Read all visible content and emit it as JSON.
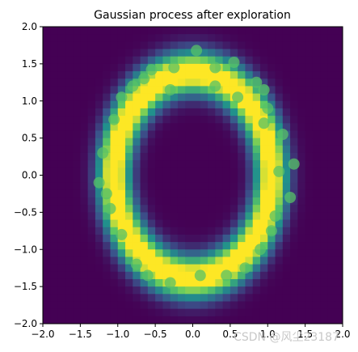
{
  "chart_data": {
    "type": "heatmap",
    "title": "Gaussian process after exploration",
    "xlabel": "",
    "ylabel": "",
    "xlim": [
      -2.0,
      2.0
    ],
    "ylim": [
      -2.0,
      2.0
    ],
    "x_ticks": [
      "−2.0",
      "−1.5",
      "−1.0",
      "−0.5",
      "0.0",
      "0.5",
      "1.0",
      "1.5",
      "2.0"
    ],
    "x_tick_values": [
      -2.0,
      -1.5,
      -1.0,
      -0.5,
      0.0,
      0.5,
      1.0,
      1.5,
      2.0
    ],
    "y_ticks": [
      "2.0",
      "1.5",
      "1.0",
      "0.5",
      "0.0",
      "−0.5",
      "−1.0",
      "−1.5",
      "−2.0"
    ],
    "y_tick_values": [
      2.0,
      1.5,
      1.0,
      0.5,
      0.0,
      -0.5,
      -1.0,
      -1.5,
      -2.0
    ],
    "grid": false,
    "colormap": "viridis",
    "background_color": "#440154",
    "description_of_values": "elliptical ring of high values (yellow) centred near (0.0, 0.0) with horizontal radius about 1.05 and vertical radius about 1.38, low values (purple) inside and outside",
    "ring": {
      "center": [
        0.0,
        0.0
      ],
      "radius_x": 1.05,
      "radius_y": 1.38,
      "width": 0.18
    },
    "samples": [
      [
        0.05,
        1.68
      ],
      [
        0.55,
        1.52
      ],
      [
        -0.55,
        1.42
      ],
      [
        0.3,
        1.45
      ],
      [
        -0.25,
        1.45
      ],
      [
        0.85,
        1.25
      ],
      [
        -0.8,
        1.2
      ],
      [
        -0.95,
        1.05
      ],
      [
        1.0,
        0.9
      ],
      [
        0.95,
        1.15
      ],
      [
        -1.05,
        0.75
      ],
      [
        1.2,
        0.55
      ],
      [
        1.15,
        0.05
      ],
      [
        1.3,
        -0.3
      ],
      [
        1.1,
        -0.55
      ],
      [
        -1.25,
        -0.1
      ],
      [
        -1.2,
        0.3
      ],
      [
        -1.1,
        -0.45
      ],
      [
        -0.95,
        -0.8
      ],
      [
        -0.75,
        -1.2
      ],
      [
        -0.6,
        -1.35
      ],
      [
        -0.3,
        -1.45
      ],
      [
        0.1,
        -1.35
      ],
      [
        0.45,
        -1.35
      ],
      [
        0.7,
        -1.25
      ],
      [
        0.9,
        -1.0
      ],
      [
        1.05,
        -0.75
      ],
      [
        -0.3,
        1.15
      ],
      [
        0.3,
        1.2
      ],
      [
        0.6,
        1.05
      ],
      [
        -1.15,
        -0.25
      ],
      [
        0.95,
        0.7
      ],
      [
        1.35,
        0.15
      ],
      [
        -0.65,
        1.3
      ]
    ]
  },
  "watermark": {
    "text": "CSDN @风尘23187"
  }
}
